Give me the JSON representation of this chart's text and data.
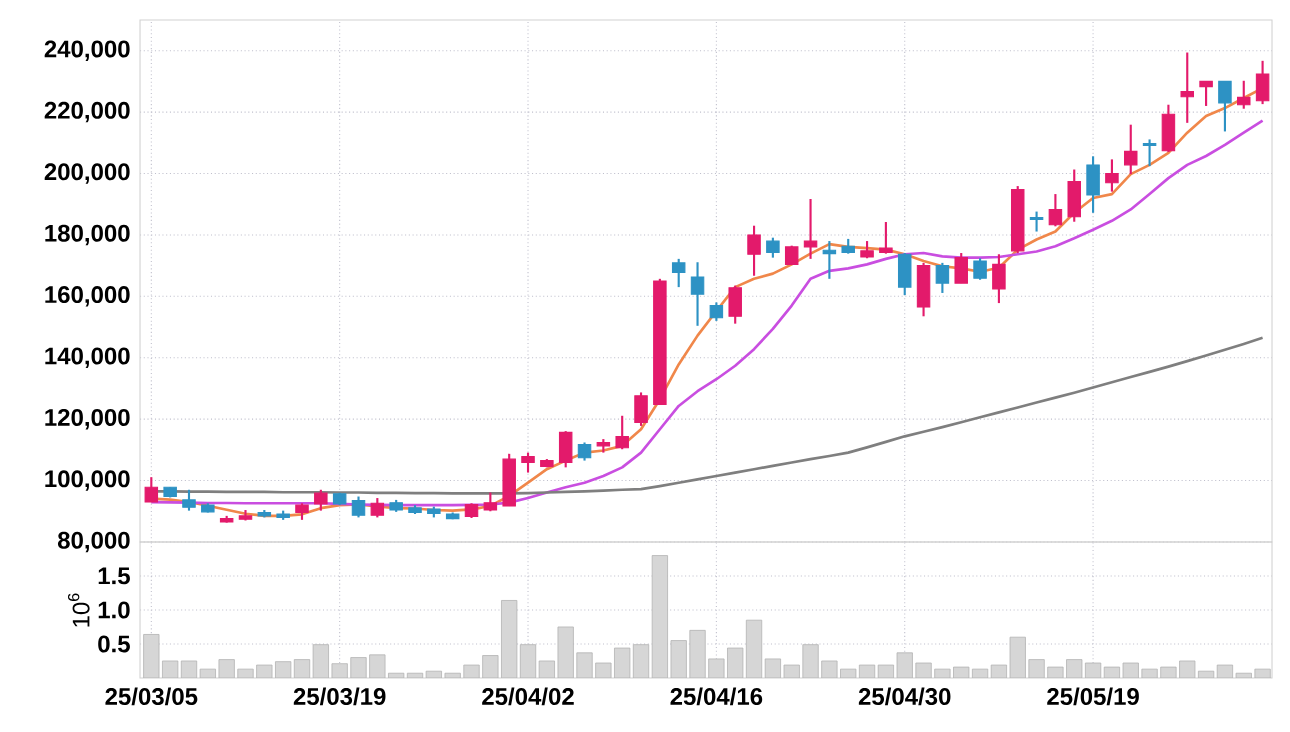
{
  "chart_data": [
    {
      "type": "candlestick",
      "categories": [
        null,
        null,
        null,
        null,
        null,
        null,
        null,
        null,
        null,
        null,
        null,
        null,
        null,
        null,
        null,
        null,
        null,
        null,
        null,
        null,
        null,
        null,
        null,
        null,
        null,
        null,
        null,
        null,
        null,
        null,
        null,
        null,
        null,
        null,
        null,
        null,
        null,
        null,
        null,
        null,
        null,
        null,
        null,
        null,
        null,
        null,
        null,
        null,
        null,
        null,
        null,
        null,
        null,
        null,
        null,
        null,
        null,
        null,
        null,
        null
      ],
      "ohlc": [
        [
          93000,
          101100,
          93000,
          97800
        ],
        [
          97800,
          97800,
          94500,
          94800
        ],
        [
          93700,
          97000,
          90200,
          91300
        ],
        [
          92000,
          92600,
          89600,
          89800
        ],
        [
          86500,
          88500,
          86300,
          87600
        ],
        [
          87400,
          90400,
          87000,
          88500
        ],
        [
          89600,
          90400,
          88000,
          88500
        ],
        [
          89100,
          90200,
          87200,
          88000
        ],
        [
          89600,
          92600,
          87200,
          92000
        ],
        [
          92400,
          97000,
          90200,
          95900
        ],
        [
          95700,
          96000,
          92000,
          92400
        ],
        [
          93500,
          94800,
          88000,
          88700
        ],
        [
          88700,
          94300,
          88000,
          92600
        ],
        [
          92800,
          93700,
          89800,
          90400
        ],
        [
          91100,
          92000,
          89100,
          89600
        ],
        [
          90700,
          91500,
          88000,
          89300
        ],
        [
          89100,
          89600,
          87400,
          87600
        ],
        [
          88300,
          92600,
          87800,
          92200
        ],
        [
          90400,
          96100,
          90000,
          92800
        ],
        [
          91700,
          108700,
          91700,
          107000
        ],
        [
          105900,
          109100,
          102600,
          107800
        ],
        [
          104600,
          107000,
          104300,
          106500
        ],
        [
          105900,
          116100,
          104300,
          115700
        ],
        [
          111700,
          112400,
          106500,
          107400
        ],
        [
          111300,
          113500,
          109100,
          112400
        ],
        [
          110700,
          121100,
          110200,
          114300
        ],
        [
          118900,
          128700,
          117800,
          127600
        ],
        [
          124800,
          165700,
          124800,
          165000
        ],
        [
          170900,
          172200,
          163000,
          167800
        ],
        [
          166300,
          171100,
          150400,
          160700
        ],
        [
          157000,
          158000,
          152000,
          153000
        ],
        [
          153500,
          163500,
          151100,
          162800
        ],
        [
          173700,
          183000,
          166700,
          180000
        ],
        [
          178000,
          179100,
          172600,
          174300
        ],
        [
          170400,
          176500,
          170400,
          176100
        ],
        [
          176100,
          191700,
          172200,
          178000
        ],
        [
          175000,
          178000,
          165700,
          173900
        ],
        [
          176300,
          178700,
          173900,
          174300
        ],
        [
          172800,
          178000,
          172400,
          174800
        ],
        [
          174300,
          184200,
          173900,
          175700
        ],
        [
          173700,
          174100,
          160400,
          163000
        ],
        [
          156500,
          170900,
          153500,
          170000
        ],
        [
          170000,
          170900,
          161100,
          164300
        ],
        [
          164300,
          174100,
          164300,
          172600
        ],
        [
          171500,
          172400,
          165400,
          165900
        ],
        [
          162400,
          173700,
          157800,
          170400
        ],
        [
          174800,
          195900,
          174100,
          194800
        ],
        [
          185700,
          187600,
          181100,
          185000
        ],
        [
          183300,
          193300,
          182800,
          188300
        ],
        [
          185900,
          201300,
          184300,
          197400
        ],
        [
          202800,
          205600,
          187200,
          193000
        ],
        [
          197000,
          204600,
          194100,
          200000
        ],
        [
          202800,
          215900,
          199800,
          207200
        ],
        [
          209800,
          211100,
          202400,
          209100
        ],
        [
          207400,
          222400,
          207000,
          219300
        ],
        [
          225000,
          239400,
          216500,
          226700
        ],
        [
          228300,
          230000,
          222000,
          230000
        ],
        [
          230000,
          230000,
          213700,
          223000
        ],
        [
          222400,
          230200,
          221100,
          224800
        ],
        [
          223700,
          236700,
          222600,
          232400
        ]
      ],
      "colors": [
        "#e31a6b",
        "#2d92c4",
        "#2d92c4",
        "#2d92c4",
        "#e31a6b",
        "#e31a6b",
        "#2d92c4",
        "#2d92c4",
        "#e31a6b",
        "#e31a6b",
        "#2d92c4",
        "#2d92c4",
        "#e31a6b",
        "#2d92c4",
        "#2d92c4",
        "#2d92c4",
        "#2d92c4",
        "#e31a6b",
        "#e31a6b",
        "#e31a6b",
        "#e31a6b",
        "#e31a6b",
        "#e31a6b",
        "#2d92c4",
        "#e31a6b",
        "#e31a6b",
        "#e31a6b",
        "#e31a6b",
        "#2d92c4",
        "#2d92c4",
        "#2d92c4",
        "#e31a6b",
        "#e31a6b",
        "#2d92c4",
        "#e31a6b",
        "#e31a6b",
        "#2d92c4",
        "#2d92c4",
        "#e31a6b",
        "#e31a6b",
        "#2d92c4",
        "#e31a6b",
        "#2d92c4",
        "#e31a6b",
        "#2d92c4",
        "#e31a6b",
        "#e31a6b",
        "#2d92c4",
        "#e31a6b",
        "#e31a6b",
        "#2d92c4",
        "#e31a6b",
        "#e31a6b",
        "#2d92c4",
        "#e31a6b",
        "#e31a6b",
        "#e31a6b",
        "#2d92c4",
        "#e31a6b",
        "#e31a6b"
      ],
      "series": [
        {
          "type": "line",
          "color": "#f0874a",
          "values": [
            94100,
            93800,
            93000,
            91800,
            90500,
            89200,
            88500,
            88500,
            89000,
            91000,
            92000,
            92200,
            91600,
            91000,
            90900,
            90400,
            90200,
            90600,
            91700,
            95000,
            99300,
            103700,
            106500,
            109100,
            109800,
            111300,
            116700,
            126500,
            137800,
            147200,
            155200,
            163000,
            165700,
            167400,
            170400,
            173900,
            177000,
            176100,
            175700,
            175200,
            173700,
            171500,
            169800,
            169100,
            168000,
            169300,
            175200,
            178500,
            181100,
            187200,
            192000,
            193300,
            199800,
            202800,
            206700,
            213300,
            218700,
            221300,
            224600,
            227800
          ]
        },
        {
          "type": "line",
          "color": "#c94ee0",
          "values": [
            93000,
            92900,
            92800,
            92700,
            92700,
            92600,
            92600,
            92600,
            92600,
            92600,
            92400,
            92200,
            92100,
            92000,
            92000,
            92000,
            92000,
            92100,
            92200,
            92800,
            94300,
            96100,
            97800,
            99300,
            101500,
            104300,
            109100,
            116700,
            124300,
            129100,
            133000,
            137400,
            142800,
            149400,
            157000,
            165700,
            168300,
            169100,
            170400,
            172200,
            173700,
            174100,
            173000,
            172600,
            172600,
            172800,
            173700,
            174600,
            176300,
            178900,
            181700,
            184600,
            188300,
            193300,
            198500,
            202800,
            205700,
            209300,
            213300,
            217200
          ]
        },
        {
          "type": "line",
          "color": "#7f7f7f",
          "values": [
            96500,
            96500,
            96400,
            96400,
            96300,
            96300,
            96300,
            96200,
            96200,
            96200,
            96100,
            96100,
            96000,
            96000,
            95900,
            95900,
            95800,
            95800,
            95800,
            95800,
            95900,
            96100,
            96300,
            96500,
            96700,
            97000,
            97200,
            98200,
            99300,
            100400,
            101500,
            102600,
            103700,
            104800,
            105900,
            107000,
            108000,
            109100,
            110800,
            112600,
            114400,
            115900,
            117400,
            119000,
            120600,
            122200,
            123800,
            125400,
            127000,
            128600,
            130300,
            132000,
            133700,
            135400,
            137100,
            138900,
            140700,
            142600,
            144500,
            146500
          ]
        }
      ],
      "ylim": [
        80000,
        250000
      ],
      "yticks": [
        {
          "value": 80000,
          "label": "80,000"
        },
        {
          "value": 100000,
          "label": "100,000"
        },
        {
          "value": 120000,
          "label": "120,000"
        },
        {
          "value": 140000,
          "label": "140,000"
        },
        {
          "value": 160000,
          "label": "160,000"
        },
        {
          "value": 180000,
          "label": "180,000"
        },
        {
          "value": 200000,
          "label": "200,000"
        },
        {
          "value": 220000,
          "label": "220,000"
        },
        {
          "value": 240000,
          "label": "240,000"
        }
      ],
      "grid": true,
      "tick_labels": "y"
    },
    {
      "type": "bar",
      "categories": [
        "25/03/05",
        null,
        null,
        null,
        null,
        null,
        null,
        null,
        null,
        null,
        "25/03/19",
        null,
        null,
        null,
        null,
        null,
        null,
        null,
        null,
        null,
        "25/04/02",
        null,
        null,
        null,
        null,
        null,
        null,
        null,
        null,
        null,
        "25/04/16",
        null,
        null,
        null,
        null,
        null,
        null,
        null,
        null,
        null,
        "25/04/30",
        null,
        null,
        null,
        null,
        null,
        null,
        null,
        null,
        null,
        "25/05/19",
        null,
        null,
        null,
        null,
        null,
        null,
        null,
        null,
        null
      ],
      "values": [
        0.64,
        0.25,
        0.25,
        0.13,
        0.27,
        0.13,
        0.19,
        0.24,
        0.27,
        0.49,
        0.21,
        0.3,
        0.34,
        0.07,
        0.07,
        0.1,
        0.07,
        0.19,
        0.33,
        1.14,
        0.49,
        0.25,
        0.75,
        0.37,
        0.22,
        0.44,
        0.49,
        1.8,
        0.55,
        0.7,
        0.28,
        0.44,
        0.85,
        0.28,
        0.19,
        0.49,
        0.25,
        0.13,
        0.19,
        0.19,
        0.37,
        0.22,
        0.13,
        0.16,
        0.13,
        0.19,
        0.6,
        0.27,
        0.16,
        0.27,
        0.22,
        0.16,
        0.22,
        0.13,
        0.16,
        0.25,
        0.1,
        0.19,
        0.07,
        0.13
      ],
      "color": "#d6d6d6",
      "ylabel": "10$^{6}$",
      "ylim": [
        0,
        2
      ],
      "yticks": [
        {
          "value": 0.5,
          "label": "0.5"
        },
        {
          "value": 1.0,
          "label": "1.0"
        },
        {
          "value": 1.5,
          "label": "1.5"
        }
      ],
      "grid": true
    }
  ]
}
